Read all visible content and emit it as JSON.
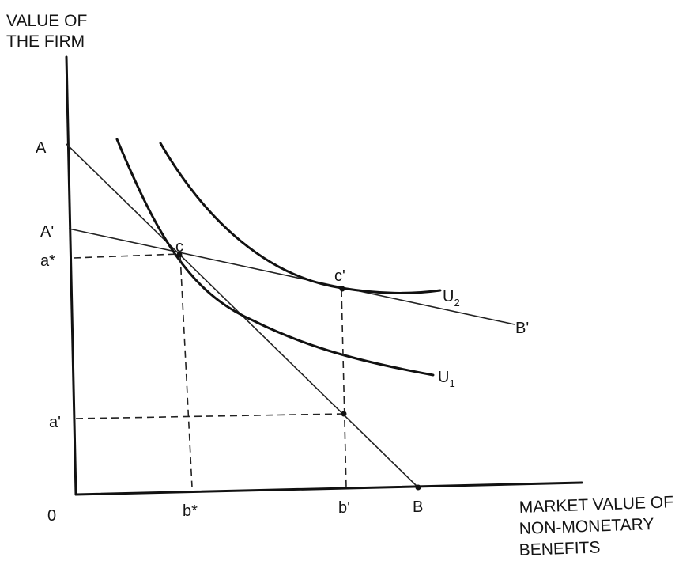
{
  "y_axis_title": [
    "VALUE OF",
    "THE FIRM"
  ],
  "x_axis_title": [
    "MARKET VALUE OF",
    "NON-MONETARY",
    "BENEFITS"
  ],
  "origin": "0",
  "y_labels": {
    "A": "A",
    "A_prime": "A'",
    "a_star": "a*",
    "a_prime": "a'"
  },
  "x_labels": {
    "b_star": "b*",
    "b_prime": "b'",
    "B": "B"
  },
  "point_labels": {
    "c": "c",
    "c_prime": "c'",
    "B_prime": "B'"
  },
  "curves": {
    "U1": {
      "base": "U",
      "sub": "1"
    },
    "U2": {
      "base": "U",
      "sub": "2"
    }
  }
}
